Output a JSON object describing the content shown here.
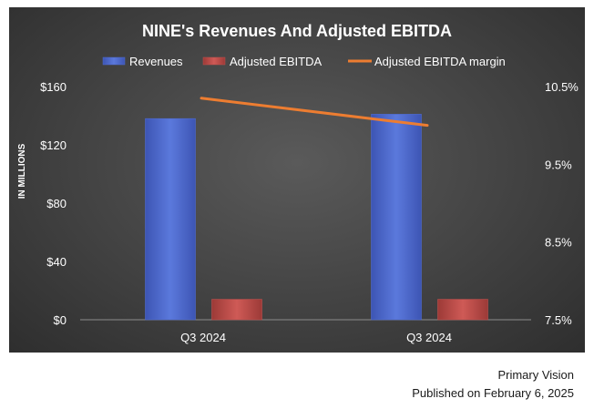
{
  "chart_data": {
    "type": "bar",
    "title": "NINE's Revenues And Adjusted EBITDA",
    "categories": [
      "Q3 2024",
      "Q3 2024"
    ],
    "ylabel": "IN MILLIONS",
    "ylim": [
      0,
      160
    ],
    "y_ticks": [
      "$0",
      "$40",
      "$80",
      "$120",
      "$160"
    ],
    "y2lim": [
      7.5,
      10.5
    ],
    "y2_ticks": [
      "7.5%",
      "8.5%",
      "9.5%",
      "10.5%"
    ],
    "grid": false,
    "legend_position": "top",
    "series": [
      {
        "name": "Revenues",
        "kind": "bar",
        "axis": "left",
        "color": "#4f6bd0",
        "values": [
          138,
          141
        ]
      },
      {
        "name": "Adjusted EBITDA",
        "kind": "bar",
        "axis": "left",
        "color": "#c0504d",
        "values": [
          14,
          14
        ]
      },
      {
        "name": "Adjusted EBITDA margin",
        "kind": "line",
        "axis": "right",
        "color": "#ed7d31",
        "values": [
          10.35,
          10.0
        ]
      }
    ]
  },
  "footer": {
    "source": "Primary Vision",
    "published": "Published on February 6, 2025"
  }
}
